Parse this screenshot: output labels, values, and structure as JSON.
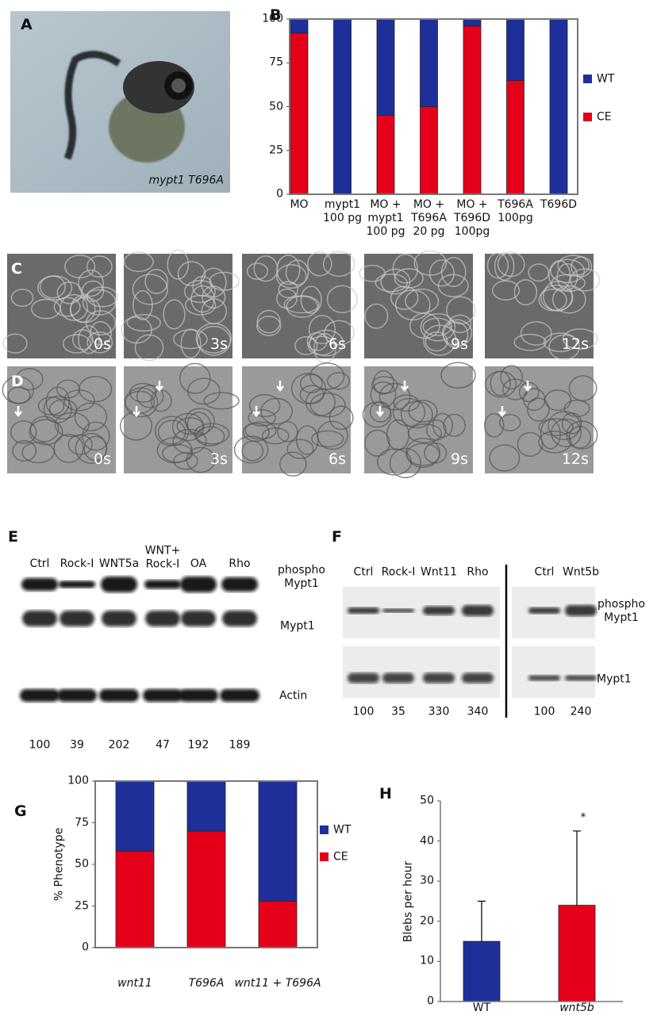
{
  "panel_a": {
    "label": "A",
    "caption": "mypt1 T696A"
  },
  "chart_data": [
    {
      "type": "bar",
      "stacked": true,
      "label": "B",
      "categories": [
        "MO",
        "mypt1\n100 pg",
        "MO +\nmypt1\n100 pg",
        "MO +\nT696A\n20 pg",
        "MO +\nT696D\n100pg",
        "T696A\n100pg",
        "T696D"
      ],
      "series": [
        {
          "name": "CE",
          "color": "#e5001a",
          "values": [
            92,
            0,
            45,
            50,
            96,
            65,
            0
          ]
        },
        {
          "name": "WT",
          "color": "#1f2f9a",
          "values": [
            8,
            100,
            55,
            50,
            4,
            35,
            100
          ]
        }
      ],
      "ylim": [
        0,
        100
      ],
      "yticks": [
        0,
        25,
        50,
        75,
        100
      ],
      "legend": "right"
    },
    {
      "type": "bar",
      "stacked": true,
      "label": "G",
      "y_label": "% Phenotype",
      "categories": [
        "wnt11",
        "T696A",
        "wnt11 + T696A"
      ],
      "series": [
        {
          "name": "CE",
          "color": "#e5001a",
          "values": [
            58,
            70,
            28
          ]
        },
        {
          "name": "WT",
          "color": "#1f2f9a",
          "values": [
            42,
            30,
            72
          ]
        }
      ],
      "ylim": [
        0,
        100
      ],
      "yticks": [
        0,
        25,
        50,
        75,
        100
      ],
      "legend": "right"
    },
    {
      "type": "bar",
      "label": "H",
      "y_label": "Blebs per hour",
      "categories": [
        "WT",
        "wnt5b"
      ],
      "values": [
        15,
        24
      ],
      "errors": [
        10,
        18.5
      ],
      "colors": [
        "#1f2f9a",
        "#e5001a"
      ],
      "significance_labels": [
        null,
        "*"
      ],
      "ylim": [
        0,
        50
      ],
      "yticks": [
        0,
        10,
        20,
        30,
        40,
        50
      ]
    }
  ],
  "panel_c": {
    "label": "C",
    "times": [
      "0s",
      "3s",
      "6s",
      "9s",
      "12s"
    ]
  },
  "panel_d": {
    "label": "D",
    "times": [
      "0s",
      "3s",
      "6s",
      "9s",
      "12s"
    ]
  },
  "panel_e": {
    "label": "E",
    "lanes": [
      "Ctrl",
      "Rock-I",
      "WNT5a",
      "WNT+\nRock-I",
      "OA",
      "Rho"
    ],
    "rows": [
      "phospho\nMypt1",
      "Mypt1",
      "Actin"
    ],
    "quantification": [
      100,
      39,
      202,
      47,
      192,
      189
    ]
  },
  "panel_f": {
    "label": "F",
    "lanes": [
      "Ctrl",
      "Rock-I",
      "Wnt11",
      "Rho",
      "Ctrl",
      "Wnt5b"
    ],
    "rows": [
      "phospho\nMypt1",
      "Mypt1"
    ],
    "quantification": [
      100,
      35,
      330,
      340,
      100,
      240
    ]
  }
}
